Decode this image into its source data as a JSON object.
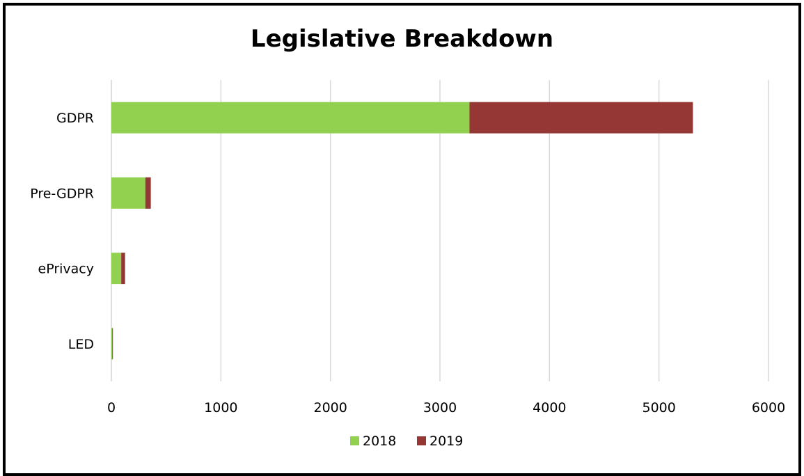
{
  "chart_data": {
    "type": "bar",
    "orientation": "horizontal",
    "stacked": true,
    "title": "Legislative Breakdown",
    "xlabel": "",
    "ylabel": "",
    "categories": [
      "GDPR",
      "Pre-GDPR",
      "ePrivacy",
      "LED"
    ],
    "series": [
      {
        "name": "2018",
        "values": [
          3270,
          310,
          90,
          8
        ],
        "color": "#92d050"
      },
      {
        "name": "2019",
        "values": [
          2040,
          50,
          35,
          6
        ],
        "color": "#953735"
      }
    ],
    "xlim": [
      0,
      6000
    ],
    "x_ticks": [
      "0",
      "1000",
      "2000",
      "3000",
      "4000",
      "5000",
      "6000"
    ],
    "grid": true,
    "legend_position": "bottom"
  }
}
